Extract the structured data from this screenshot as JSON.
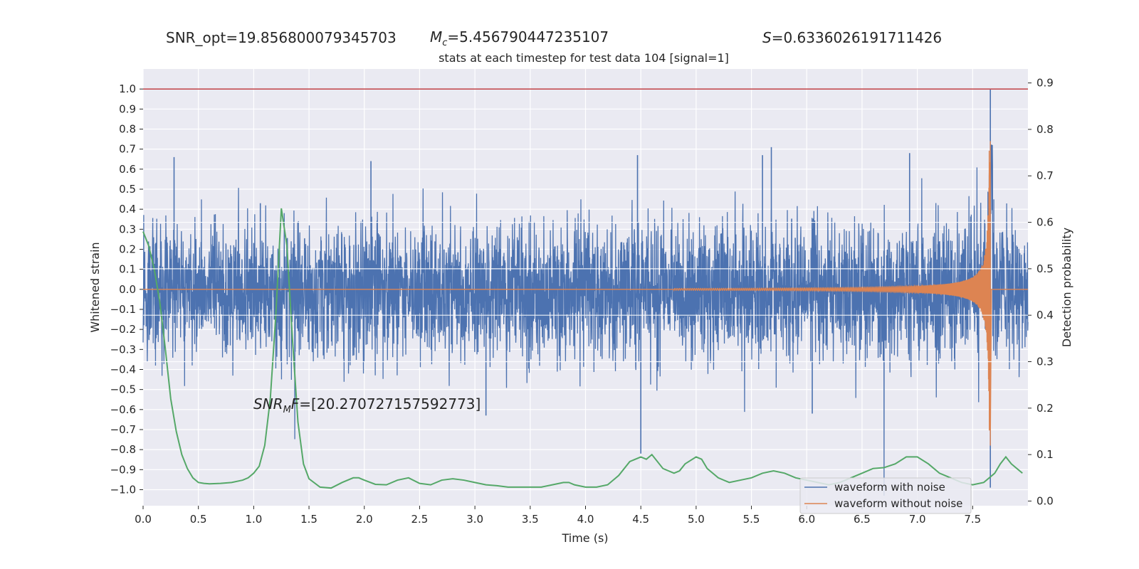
{
  "chart_data": {
    "type": "line",
    "title": "stats at each timestep for test data 104 [signal=1]",
    "stats": {
      "snr_opt": "SNR_opt=19.856800079345703",
      "mc_sym": "M",
      "mc_sub": "c",
      "mc_value": "=5.456790447235107",
      "s_sym": "S",
      "s_value": "=0.6336026191711426",
      "snr_mf_sym": "SNR",
      "snr_mf_sub": "M",
      "snr_mf_sym2": "F",
      "snr_mf_value": "=[20.270727157592773]"
    },
    "xlabel": "Time (s)",
    "ylabel_left": "Whitened strain",
    "ylabel_right": "Detection probability",
    "xlim": [
      0.0,
      8.0
    ],
    "ylim_left": [
      -1.08,
      1.1
    ],
    "ylim_right": [
      -0.01,
      0.93
    ],
    "x_ticks": [
      "0.0",
      "0.5",
      "1.0",
      "1.5",
      "2.0",
      "2.5",
      "3.0",
      "3.5",
      "4.0",
      "4.5",
      "5.0",
      "5.5",
      "6.0",
      "6.5",
      "7.0",
      "7.5"
    ],
    "y_ticks_left": [
      "1.0",
      "0.9",
      "0.8",
      "0.7",
      "0.6",
      "0.5",
      "0.4",
      "0.3",
      "0.2",
      "0.1",
      "0.0",
      "−0.1",
      "−0.2",
      "−0.3",
      "−0.4",
      "−0.5",
      "−0.6",
      "−0.7",
      "−0.8",
      "−0.9",
      "−1.0"
    ],
    "y_ticks_right": [
      "0.9",
      "0.8",
      "0.7",
      "0.6",
      "0.5",
      "0.4",
      "0.3",
      "0.2",
      "0.1",
      "0.0"
    ],
    "legend_position": "lower-right",
    "grid": true,
    "series": [
      {
        "name": "waveform with noise",
        "color": "#4c72b0",
        "kind": "noise-strain",
        "envelope_typical": 0.3,
        "spikes": [
          {
            "x": 0.28,
            "y": 0.66
          },
          {
            "x": 1.06,
            "y": 0.43
          },
          {
            "x": 2.06,
            "y": 0.64
          },
          {
            "x": 4.5,
            "y": -0.82
          },
          {
            "x": 4.47,
            "y": 0.67
          },
          {
            "x": 5.6,
            "y": 0.67
          },
          {
            "x": 5.68,
            "y": 0.71
          },
          {
            "x": 6.93,
            "y": 0.68
          },
          {
            "x": 7.66,
            "y": 1.0
          },
          {
            "x": 7.66,
            "y": -0.99
          },
          {
            "x": 3.1,
            "y": -0.63
          },
          {
            "x": 6.05,
            "y": -0.62
          }
        ]
      },
      {
        "name": "waveform without noise",
        "color": "#dd8452",
        "kind": "chirp",
        "chirp_start": 4.8,
        "merger_time": 7.66,
        "peak_amplitude": 0.74,
        "min_amplitude": -0.78
      },
      {
        "name": "",
        "color": "#55a868",
        "axis": "right",
        "x": [
          0.0,
          0.05,
          0.1,
          0.15,
          0.2,
          0.25,
          0.3,
          0.35,
          0.4,
          0.45,
          0.5,
          0.55,
          0.6,
          0.7,
          0.8,
          0.9,
          0.95,
          1.0,
          1.05,
          1.1,
          1.15,
          1.2,
          1.25,
          1.3,
          1.35,
          1.4,
          1.45,
          1.5,
          1.6,
          1.7,
          1.8,
          1.9,
          1.95,
          2.0,
          2.1,
          2.2,
          2.3,
          2.4,
          2.5,
          2.6,
          2.7,
          2.8,
          2.9,
          3.0,
          3.1,
          3.2,
          3.3,
          3.4,
          3.5,
          3.6,
          3.7,
          3.8,
          3.85,
          3.9,
          4.0,
          4.1,
          4.2,
          4.3,
          4.4,
          4.5,
          4.55,
          4.6,
          4.7,
          4.8,
          4.85,
          4.9,
          5.0,
          5.05,
          5.1,
          5.2,
          5.3,
          5.4,
          5.5,
          5.6,
          5.7,
          5.8,
          5.9,
          6.0,
          6.1,
          6.2,
          6.3,
          6.4,
          6.5,
          6.6,
          6.7,
          6.8,
          6.9,
          7.0,
          7.1,
          7.2,
          7.3,
          7.4,
          7.5,
          7.6,
          7.7,
          7.75,
          7.8,
          7.85,
          7.9,
          7.95
        ],
        "values": [
          0.58,
          0.55,
          0.5,
          0.43,
          0.33,
          0.22,
          0.15,
          0.1,
          0.07,
          0.05,
          0.04,
          0.038,
          0.037,
          0.038,
          0.04,
          0.045,
          0.05,
          0.06,
          0.075,
          0.12,
          0.22,
          0.4,
          0.63,
          0.55,
          0.35,
          0.17,
          0.08,
          0.048,
          0.03,
          0.028,
          0.04,
          0.05,
          0.05,
          0.045,
          0.036,
          0.035,
          0.045,
          0.05,
          0.038,
          0.035,
          0.045,
          0.048,
          0.045,
          0.04,
          0.035,
          0.033,
          0.03,
          0.03,
          0.03,
          0.03,
          0.035,
          0.04,
          0.04,
          0.035,
          0.03,
          0.03,
          0.035,
          0.055,
          0.085,
          0.095,
          0.09,
          0.1,
          0.07,
          0.06,
          0.065,
          0.08,
          0.095,
          0.09,
          0.07,
          0.05,
          0.04,
          0.045,
          0.05,
          0.06,
          0.065,
          0.06,
          0.05,
          0.045,
          0.04,
          0.035,
          0.04,
          0.05,
          0.06,
          0.07,
          0.072,
          0.08,
          0.095,
          0.095,
          0.08,
          0.06,
          0.05,
          0.04,
          0.035,
          0.04,
          0.06,
          0.08,
          0.095,
          0.08,
          0.07,
          0.06
        ]
      }
    ]
  }
}
